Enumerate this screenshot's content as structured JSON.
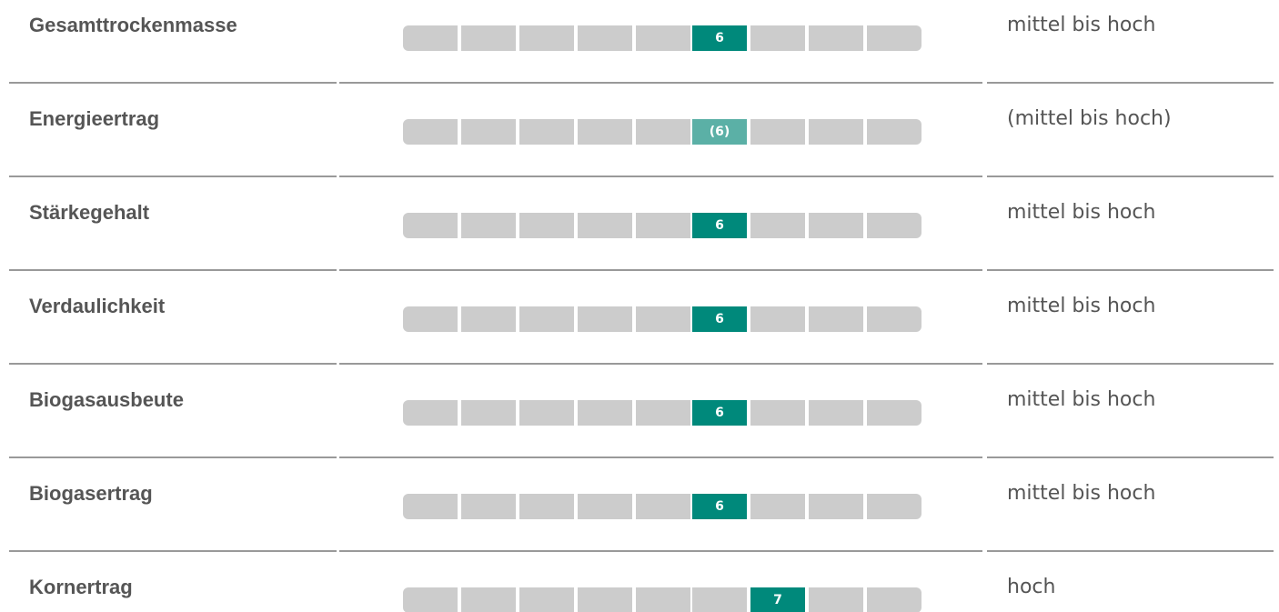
{
  "rows": [
    {
      "label": "Gesamttrockenmasse",
      "rating": 6,
      "color": "#00897b",
      "description": "mittel bis hoch"
    },
    {
      "label": "Energieertrag",
      "rating": {
        "value": 6,
        "label": "(6)"
      },
      "color": "#5bb0a6",
      "description": "(mittel bis hoch)"
    },
    {
      "label": "Stärkegehalt",
      "rating": 6,
      "color": "#00897b",
      "description": "mittel bis hoch"
    },
    {
      "label": "Verdaulichkeit",
      "rating": 6,
      "color": "#00897b",
      "description": "mittel bis hoch"
    },
    {
      "label": "Biogasausbeute",
      "rating": 6,
      "color": "#00897b",
      "description": "mittel bis hoch"
    },
    {
      "label": "Biogasertrag",
      "rating": 6,
      "color": "#00897b",
      "description": "mittel bis hoch"
    },
    {
      "label": "Kornertrag",
      "rating": 7,
      "color": "#00897b",
      "description": "hoch"
    }
  ]
}
